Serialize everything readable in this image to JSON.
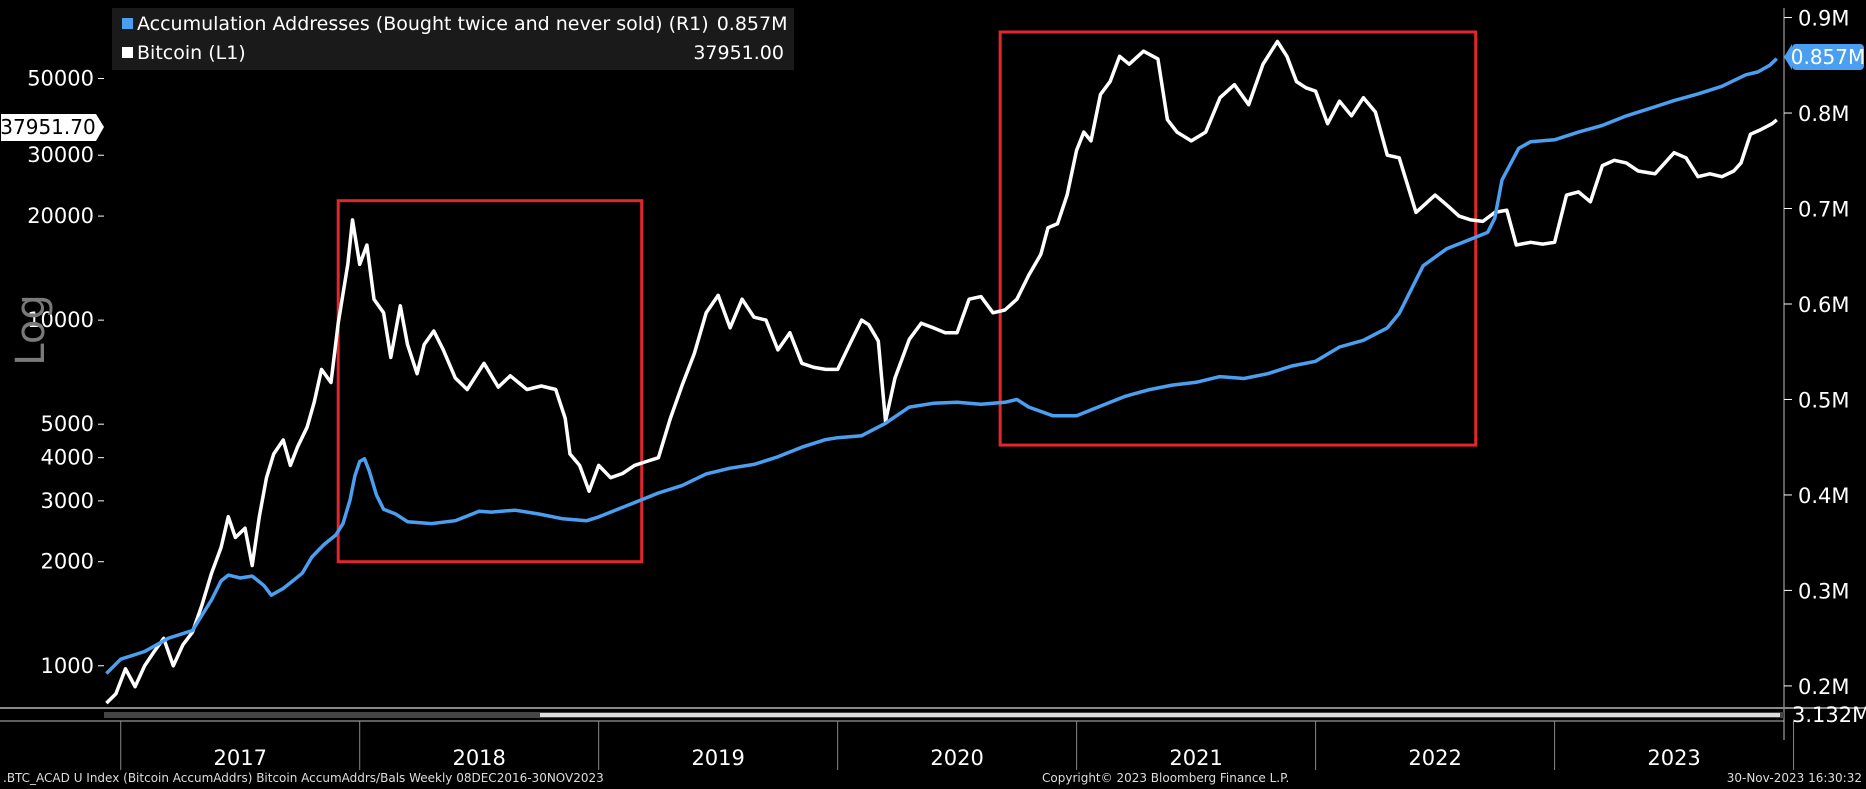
{
  "legend": {
    "series1_label": "Accumulation Addresses (Bought twice and never sold) (R1)",
    "series1_value": "0.857M",
    "series2_label": "Bitcoin (L1)",
    "series2_value": "37951.00"
  },
  "axis": {
    "left_scale_label": "Log",
    "last_left_label": "37951.70",
    "last_right_label": "0.857M",
    "truncated_right_label": "3.132M"
  },
  "footer": {
    "left": ".BTC_ACAD U Index (Bitcoin AccumAddrs) Bitcoin AccumAddrs/Bals  Weekly 08DEC2016-30NOV2023",
    "center": "Copyright© 2023 Bloomberg Finance L.P.",
    "right": "30-Nov-2023 16:30:32"
  },
  "colors": {
    "accumulation": "#4a9ff0",
    "bitcoin": "#ffffff",
    "highlight_box": "#e3262b",
    "background": "#000000"
  },
  "chart_data": {
    "type": "line",
    "x_ticks": [
      "2017",
      "2018",
      "2019",
      "2020",
      "2021",
      "2022",
      "2023"
    ],
    "x_range": [
      2016.93,
      2023.96
    ],
    "left_axis": {
      "scale": "log",
      "range": [
        770,
        80000
      ],
      "ticks": [
        1000,
        2000,
        3000,
        4000,
        5000,
        10000,
        20000,
        30000,
        50000
      ]
    },
    "right_axis": {
      "scale": "linear",
      "unit": "M",
      "range": [
        0.18,
        0.91
      ],
      "ticks": [
        0.2,
        0.3,
        0.4,
        0.5,
        0.6,
        0.7,
        0.8,
        0.9
      ],
      "tick_labels": [
        "0.2M",
        "0.3M",
        "0.4M",
        "0.5M",
        "0.6M",
        "0.7M",
        "0.8M",
        "0.9M"
      ]
    },
    "highlight_boxes": [
      {
        "x": [
          2017.91,
          2019.18
        ],
        "y_left": [
          2000,
          26000
        ]
      },
      {
        "x": [
          2020.68,
          2022.67
        ],
        "y_left": [
          4350,
          96000
        ]
      }
    ],
    "series": [
      {
        "name": "Bitcoin (L1)",
        "axis": "left",
        "points": [
          [
            2016.94,
            780
          ],
          [
            2016.98,
            830
          ],
          [
            2017.02,
            980
          ],
          [
            2017.06,
            870
          ],
          [
            2017.1,
            1000
          ],
          [
            2017.14,
            1100
          ],
          [
            2017.18,
            1200
          ],
          [
            2017.22,
            1000
          ],
          [
            2017.26,
            1150
          ],
          [
            2017.3,
            1250
          ],
          [
            2017.34,
            1500
          ],
          [
            2017.38,
            1850
          ],
          [
            2017.42,
            2200
          ],
          [
            2017.45,
            2700
          ],
          [
            2017.48,
            2350
          ],
          [
            2017.52,
            2500
          ],
          [
            2017.55,
            1950
          ],
          [
            2017.58,
            2700
          ],
          [
            2017.61,
            3500
          ],
          [
            2017.64,
            4100
          ],
          [
            2017.68,
            4500
          ],
          [
            2017.71,
            3800
          ],
          [
            2017.74,
            4300
          ],
          [
            2017.78,
            4900
          ],
          [
            2017.81,
            5800
          ],
          [
            2017.84,
            7200
          ],
          [
            2017.88,
            6600
          ],
          [
            2017.91,
            9800
          ],
          [
            2017.95,
            14500
          ],
          [
            2017.97,
            19500
          ],
          [
            2018.0,
            14500
          ],
          [
            2018.03,
            16500
          ],
          [
            2018.06,
            11500
          ],
          [
            2018.1,
            10500
          ],
          [
            2018.13,
            7800
          ],
          [
            2018.17,
            11000
          ],
          [
            2018.2,
            8500
          ],
          [
            2018.24,
            7000
          ],
          [
            2018.27,
            8500
          ],
          [
            2018.31,
            9300
          ],
          [
            2018.35,
            8200
          ],
          [
            2018.4,
            6800
          ],
          [
            2018.45,
            6300
          ],
          [
            2018.52,
            7500
          ],
          [
            2018.58,
            6400
          ],
          [
            2018.63,
            6900
          ],
          [
            2018.7,
            6300
          ],
          [
            2018.76,
            6450
          ],
          [
            2018.82,
            6300
          ],
          [
            2018.86,
            5200
          ],
          [
            2018.88,
            4100
          ],
          [
            2018.92,
            3800
          ],
          [
            2018.96,
            3200
          ],
          [
            2019.0,
            3800
          ],
          [
            2019.05,
            3500
          ],
          [
            2019.1,
            3600
          ],
          [
            2019.15,
            3800
          ],
          [
            2019.2,
            3900
          ],
          [
            2019.25,
            4000
          ],
          [
            2019.3,
            5200
          ],
          [
            2019.35,
            6500
          ],
          [
            2019.4,
            8000
          ],
          [
            2019.45,
            10500
          ],
          [
            2019.5,
            11800
          ],
          [
            2019.55,
            9500
          ],
          [
            2019.6,
            11500
          ],
          [
            2019.65,
            10200
          ],
          [
            2019.7,
            10000
          ],
          [
            2019.75,
            8200
          ],
          [
            2019.8,
            9200
          ],
          [
            2019.85,
            7500
          ],
          [
            2019.9,
            7300
          ],
          [
            2019.95,
            7200
          ],
          [
            2020.0,
            7200
          ],
          [
            2020.05,
            8500
          ],
          [
            2020.1,
            10000
          ],
          [
            2020.13,
            9700
          ],
          [
            2020.17,
            8700
          ],
          [
            2020.2,
            5100
          ],
          [
            2020.24,
            6800
          ],
          [
            2020.3,
            8800
          ],
          [
            2020.35,
            9800
          ],
          [
            2020.4,
            9500
          ],
          [
            2020.45,
            9200
          ],
          [
            2020.5,
            9200
          ],
          [
            2020.55,
            11500
          ],
          [
            2020.6,
            11700
          ],
          [
            2020.65,
            10500
          ],
          [
            2020.7,
            10700
          ],
          [
            2020.75,
            11500
          ],
          [
            2020.8,
            13500
          ],
          [
            2020.85,
            15500
          ],
          [
            2020.88,
            18500
          ],
          [
            2020.92,
            19000
          ],
          [
            2020.96,
            23000
          ],
          [
            2021.0,
            31000
          ],
          [
            2021.03,
            35000
          ],
          [
            2021.06,
            33000
          ],
          [
            2021.1,
            45000
          ],
          [
            2021.14,
            49000
          ],
          [
            2021.18,
            58000
          ],
          [
            2021.22,
            55000
          ],
          [
            2021.28,
            60000
          ],
          [
            2021.34,
            57000
          ],
          [
            2021.38,
            38000
          ],
          [
            2021.42,
            35000
          ],
          [
            2021.48,
            33000
          ],
          [
            2021.54,
            35000
          ],
          [
            2021.6,
            44000
          ],
          [
            2021.66,
            48000
          ],
          [
            2021.72,
            42000
          ],
          [
            2021.78,
            55000
          ],
          [
            2021.84,
            64000
          ],
          [
            2021.88,
            58000
          ],
          [
            2021.92,
            49000
          ],
          [
            2021.96,
            47000
          ],
          [
            2022.0,
            46000
          ],
          [
            2022.05,
            37000
          ],
          [
            2022.1,
            43000
          ],
          [
            2022.15,
            39000
          ],
          [
            2022.2,
            44000
          ],
          [
            2022.25,
            40000
          ],
          [
            2022.3,
            30000
          ],
          [
            2022.35,
            29500
          ],
          [
            2022.42,
            20500
          ],
          [
            2022.5,
            23000
          ],
          [
            2022.55,
            21500
          ],
          [
            2022.6,
            20000
          ],
          [
            2022.65,
            19500
          ],
          [
            2022.7,
            19300
          ],
          [
            2022.75,
            20500
          ],
          [
            2022.8,
            20800
          ],
          [
            2022.84,
            16500
          ],
          [
            2022.9,
            16800
          ],
          [
            2022.95,
            16600
          ],
          [
            2023.0,
            16800
          ],
          [
            2023.05,
            23000
          ],
          [
            2023.1,
            23500
          ],
          [
            2023.15,
            22000
          ],
          [
            2023.2,
            28000
          ],
          [
            2023.25,
            29000
          ],
          [
            2023.3,
            28500
          ],
          [
            2023.35,
            27000
          ],
          [
            2023.42,
            26500
          ],
          [
            2023.5,
            30500
          ],
          [
            2023.55,
            29500
          ],
          [
            2023.6,
            26000
          ],
          [
            2023.65,
            26500
          ],
          [
            2023.7,
            26000
          ],
          [
            2023.75,
            27000
          ],
          [
            2023.78,
            28500
          ],
          [
            2023.82,
            34500
          ],
          [
            2023.86,
            35500
          ],
          [
            2023.91,
            37000
          ],
          [
            2023.93,
            37951
          ]
        ]
      },
      {
        "name": "Accumulation Addresses (Bought twice and never sold) (R1)",
        "axis": "right",
        "points": [
          [
            2016.94,
            0.213
          ],
          [
            2017.0,
            0.228
          ],
          [
            2017.1,
            0.236
          ],
          [
            2017.2,
            0.25
          ],
          [
            2017.3,
            0.258
          ],
          [
            2017.38,
            0.29
          ],
          [
            2017.42,
            0.31
          ],
          [
            2017.45,
            0.316
          ],
          [
            2017.5,
            0.313
          ],
          [
            2017.55,
            0.315
          ],
          [
            2017.6,
            0.305
          ],
          [
            2017.63,
            0.295
          ],
          [
            2017.68,
            0.302
          ],
          [
            2017.72,
            0.31
          ],
          [
            2017.76,
            0.318
          ],
          [
            2017.8,
            0.335
          ],
          [
            2017.85,
            0.348
          ],
          [
            2017.9,
            0.358
          ],
          [
            2017.93,
            0.37
          ],
          [
            2017.96,
            0.395
          ],
          [
            2017.98,
            0.42
          ],
          [
            2018.0,
            0.435
          ],
          [
            2018.02,
            0.438
          ],
          [
            2018.04,
            0.425
          ],
          [
            2018.07,
            0.4
          ],
          [
            2018.1,
            0.385
          ],
          [
            2018.15,
            0.38
          ],
          [
            2018.2,
            0.372
          ],
          [
            2018.3,
            0.37
          ],
          [
            2018.4,
            0.373
          ],
          [
            2018.5,
            0.383
          ],
          [
            2018.55,
            0.382
          ],
          [
            2018.65,
            0.384
          ],
          [
            2018.75,
            0.38
          ],
          [
            2018.85,
            0.375
          ],
          [
            2018.95,
            0.373
          ],
          [
            2019.0,
            0.377
          ],
          [
            2019.08,
            0.385
          ],
          [
            2019.15,
            0.392
          ],
          [
            2019.25,
            0.402
          ],
          [
            2019.35,
            0.41
          ],
          [
            2019.45,
            0.422
          ],
          [
            2019.55,
            0.428
          ],
          [
            2019.65,
            0.432
          ],
          [
            2019.75,
            0.44
          ],
          [
            2019.85,
            0.45
          ],
          [
            2019.95,
            0.458
          ],
          [
            2020.0,
            0.46
          ],
          [
            2020.1,
            0.462
          ],
          [
            2020.2,
            0.475
          ],
          [
            2020.3,
            0.492
          ],
          [
            2020.4,
            0.496
          ],
          [
            2020.5,
            0.497
          ],
          [
            2020.6,
            0.495
          ],
          [
            2020.7,
            0.497
          ],
          [
            2020.75,
            0.5
          ],
          [
            2020.8,
            0.492
          ],
          [
            2020.9,
            0.483
          ],
          [
            2021.0,
            0.483
          ],
          [
            2021.1,
            0.493
          ],
          [
            2021.2,
            0.503
          ],
          [
            2021.3,
            0.51
          ],
          [
            2021.4,
            0.515
          ],
          [
            2021.5,
            0.518
          ],
          [
            2021.6,
            0.524
          ],
          [
            2021.7,
            0.522
          ],
          [
            2021.8,
            0.527
          ],
          [
            2021.9,
            0.535
          ],
          [
            2022.0,
            0.54
          ],
          [
            2022.1,
            0.555
          ],
          [
            2022.2,
            0.562
          ],
          [
            2022.3,
            0.575
          ],
          [
            2022.35,
            0.59
          ],
          [
            2022.45,
            0.64
          ],
          [
            2022.55,
            0.658
          ],
          [
            2022.65,
            0.668
          ],
          [
            2022.72,
            0.675
          ],
          [
            2022.75,
            0.69
          ],
          [
            2022.78,
            0.73
          ],
          [
            2022.85,
            0.763
          ],
          [
            2022.9,
            0.77
          ],
          [
            2023.0,
            0.772
          ],
          [
            2023.1,
            0.78
          ],
          [
            2023.2,
            0.787
          ],
          [
            2023.3,
            0.797
          ],
          [
            2023.4,
            0.805
          ],
          [
            2023.5,
            0.813
          ],
          [
            2023.6,
            0.82
          ],
          [
            2023.7,
            0.828
          ],
          [
            2023.8,
            0.84
          ],
          [
            2023.85,
            0.843
          ],
          [
            2023.9,
            0.85
          ],
          [
            2023.93,
            0.857
          ]
        ]
      }
    ]
  }
}
